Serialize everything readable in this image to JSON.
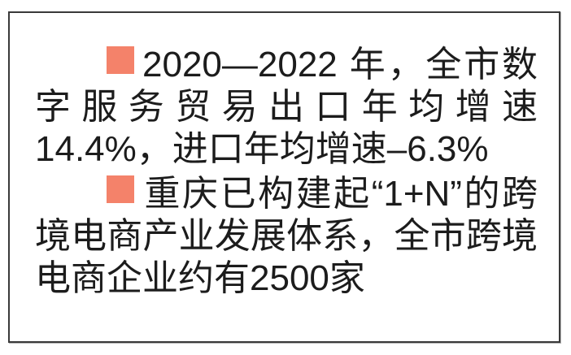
{
  "page": {
    "background_color": "#ffffff"
  },
  "box": {
    "border_color": "#3a3a3a",
    "accent_color": "#f4826a",
    "items": [
      {
        "marker": "square-bullet",
        "text": "2020—2022 年，全市数字服务贸易出口年均增速14.4%，进口年均增速–6.3%"
      },
      {
        "marker": "square-bullet",
        "text": "重庆已构建起“1+N”的跨境电商产业发展体系，全市跨境电商企业约有2500家"
      }
    ]
  }
}
